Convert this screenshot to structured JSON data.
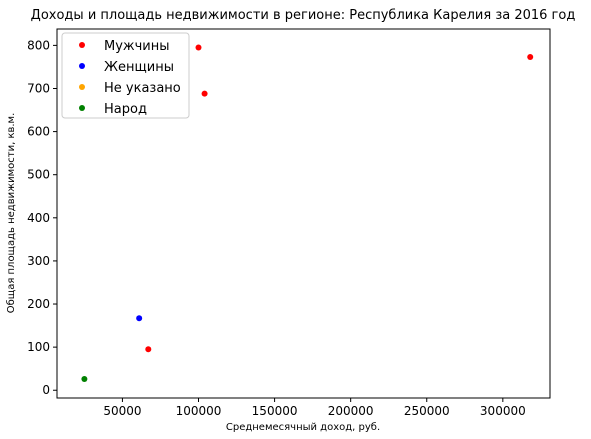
{
  "chart_data": {
    "type": "scatter",
    "title": "Доходы и площадь недвижимости в регионе: Республика Карелия за 2016 год",
    "xlabel": "Среднемесячный доход, руб.",
    "ylabel": "Общая площадь недвижимости, кв.м.",
    "xlim": [
      7000,
      331000
    ],
    "ylim": [
      -18,
      838
    ],
    "x_ticks": [
      {
        "value": 50000,
        "label": "50000"
      },
      {
        "value": 100000,
        "label": "100000"
      },
      {
        "value": 150000,
        "label": "150000"
      },
      {
        "value": 200000,
        "label": "200000"
      },
      {
        "value": 250000,
        "label": "250000"
      },
      {
        "value": 300000,
        "label": "300000"
      }
    ],
    "y_ticks": [
      {
        "value": 0,
        "label": "0"
      },
      {
        "value": 100,
        "label": "100"
      },
      {
        "value": 200,
        "label": "200"
      },
      {
        "value": 300,
        "label": "300"
      },
      {
        "value": 400,
        "label": "400"
      },
      {
        "value": 500,
        "label": "500"
      },
      {
        "value": 600,
        "label": "600"
      },
      {
        "value": 700,
        "label": "700"
      },
      {
        "value": 800,
        "label": "800"
      }
    ],
    "grid": false,
    "legend_position": "top-left",
    "series": [
      {
        "name": "Мужчины",
        "color": "#ff0000",
        "points": [
          [
            100000,
            795
          ],
          [
            104000,
            688
          ],
          [
            67000,
            95
          ],
          [
            318000,
            773
          ]
        ]
      },
      {
        "name": "Женщины",
        "color": "#0000ff",
        "points": [
          [
            61000,
            167
          ]
        ]
      },
      {
        "name": "Не указано",
        "color": "#ffa500",
        "points": []
      },
      {
        "name": "Народ",
        "color": "#008000",
        "points": [
          [
            25000,
            26
          ]
        ]
      }
    ]
  }
}
